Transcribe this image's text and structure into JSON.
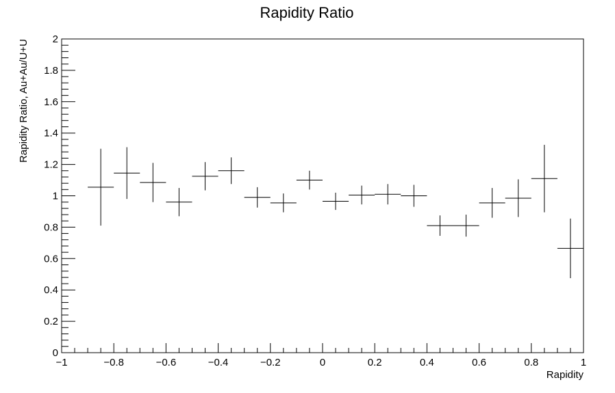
{
  "chart_data": {
    "type": "scatter",
    "title": "Rapidity Ratio",
    "xlabel": "Rapidity",
    "ylabel": "Rapidity Ratio, Au+Au/U+U",
    "xlim": [
      -1,
      1
    ],
    "ylim": [
      0,
      2
    ],
    "x_ticks": [
      "−1",
      "−0.8",
      "−0.6",
      "−0.4",
      "−0.2",
      "0",
      "0.2",
      "0.4",
      "0.6",
      "0.8",
      "1"
    ],
    "y_ticks": [
      "0",
      "0.2",
      "0.4",
      "0.6",
      "0.8",
      "1",
      "1.2",
      "1.4",
      "1.6",
      "1.8",
      "2"
    ],
    "grid": false,
    "legend": "none",
    "bin_width": 0.1,
    "series": [
      {
        "x": [
          -0.85,
          -0.75,
          -0.65,
          -0.55,
          -0.45,
          -0.35,
          -0.25,
          -0.15,
          -0.05,
          0.05,
          0.15,
          0.25,
          0.35,
          0.45,
          0.55,
          0.65,
          0.75,
          0.85,
          0.95
        ],
        "y": [
          1.055,
          1.145,
          1.085,
          0.96,
          1.125,
          1.16,
          0.99,
          0.955,
          1.1,
          0.965,
          1.005,
          1.01,
          1.0,
          0.81,
          0.81,
          0.955,
          0.985,
          1.11,
          0.665
        ],
        "yerr": [
          0.245,
          0.165,
          0.125,
          0.09,
          0.09,
          0.085,
          0.065,
          0.06,
          0.06,
          0.055,
          0.06,
          0.065,
          0.07,
          0.065,
          0.07,
          0.095,
          0.12,
          0.215,
          0.19
        ]
      }
    ]
  }
}
